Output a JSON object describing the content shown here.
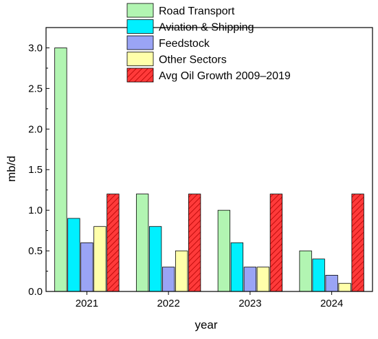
{
  "chart_data": {
    "type": "bar",
    "title": "",
    "xlabel": "year",
    "ylabel": "mb/d",
    "ylim": [
      0,
      3.25
    ],
    "yticks": [
      "0.0",
      "0.5",
      "1.0",
      "1.5",
      "2.0",
      "2.5",
      "3.0"
    ],
    "categories": [
      "2021",
      "2022",
      "2023",
      "2024"
    ],
    "grid": false,
    "legend_position": "top-right",
    "series": [
      {
        "name": "Road Transport",
        "values": [
          3.0,
          1.2,
          1.0,
          0.5
        ],
        "color": "#b2f5b2",
        "pattern": "solid"
      },
      {
        "name": "Aviation & Shipping",
        "values": [
          0.9,
          0.8,
          0.6,
          0.4
        ],
        "color": "#00f0ff",
        "pattern": "solid"
      },
      {
        "name": "Feedstock",
        "values": [
          0.6,
          0.3,
          0.3,
          0.2
        ],
        "color": "#9aa4f5",
        "pattern": "solid"
      },
      {
        "name": "Other Sectors",
        "values": [
          0.8,
          0.5,
          0.3,
          0.1
        ],
        "color": "#ffffaa",
        "pattern": "solid"
      },
      {
        "name": "Avg Oil Growth 2009–2019",
        "values": [
          1.2,
          1.2,
          1.2,
          1.2
        ],
        "color": "#ff3a3a",
        "pattern": "hatch"
      }
    ]
  }
}
